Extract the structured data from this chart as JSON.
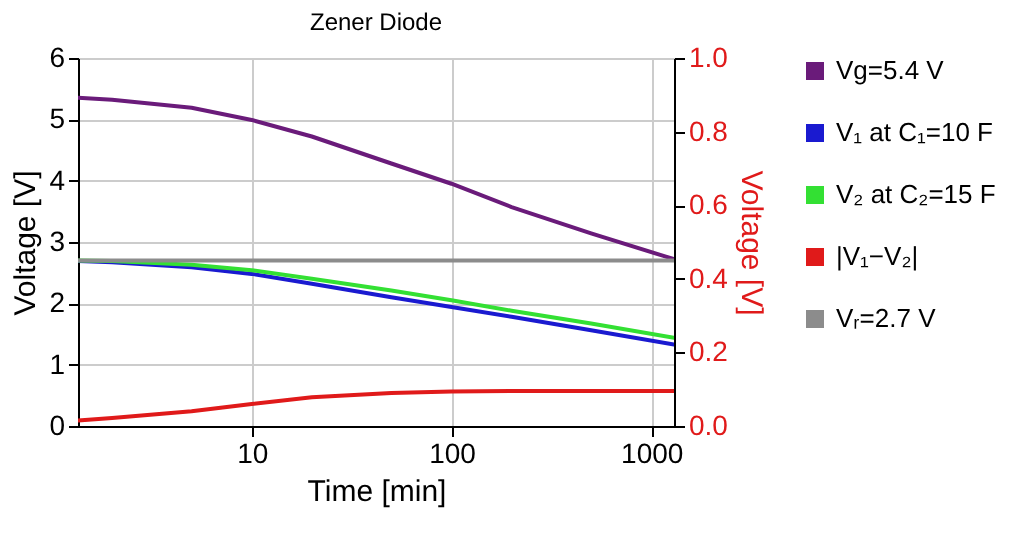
{
  "chart_data": {
    "type": "line",
    "title": "Zener Diode",
    "xlabel": "Time [min]",
    "ylabel": "Voltage [V]",
    "y2label": "Voltage [V]",
    "x": [
      1.35,
      2,
      5,
      10,
      20,
      50,
      100,
      200,
      500,
      1300
    ],
    "series": [
      {
        "name": "Vg=5.4 V",
        "color": "#6a1b7a",
        "values": [
          5.35,
          5.32,
          5.19,
          4.99,
          4.72,
          4.28,
          3.95,
          3.57,
          3.14,
          2.72
        ]
      },
      {
        "name": "V₁ at C₁=10 F",
        "color": "#1a1ad0",
        "values": [
          2.69,
          2.67,
          2.59,
          2.48,
          2.32,
          2.1,
          1.94,
          1.78,
          1.56,
          1.33
        ]
      },
      {
        "name": "V₂ at C₂=15 F",
        "color": "#33e033",
        "values": [
          2.7,
          2.69,
          2.63,
          2.54,
          2.4,
          2.21,
          2.05,
          1.88,
          1.67,
          1.44
        ]
      },
      {
        "name": "|V₁−V₂|",
        "color": "#e01a1a",
        "axis": "y2",
        "values": [
          0.015,
          0.022,
          0.04,
          0.06,
          0.078,
          0.09,
          0.094,
          0.095,
          0.095,
          0.095
        ]
      },
      {
        "name": "Vᵣ=2.7 V",
        "color": "#8c8c8c",
        "values": [
          2.7,
          2.7,
          2.7,
          2.7,
          2.7,
          2.7,
          2.7,
          2.7,
          2.7,
          2.7
        ]
      }
    ],
    "log": "x",
    "xlim": [
      1.35,
      1300
    ],
    "xticks": [
      10,
      100,
      1000
    ],
    "ylim": [
      0,
      6
    ],
    "yticks": [
      0,
      1,
      2,
      3,
      4,
      5,
      6
    ],
    "y2lim": [
      0,
      1.0
    ],
    "y2ticks": [
      {
        "value": 0,
        "label": "0.0"
      },
      {
        "value": 0.2,
        "label": "0.2"
      },
      {
        "value": 0.4,
        "label": "0.4"
      },
      {
        "value": 0.6,
        "label": "0.6"
      },
      {
        "value": 0.8,
        "label": "0.8"
      },
      {
        "value": 1.0,
        "label": "1.0"
      }
    ],
    "grid": true,
    "legend": "right",
    "marker": "none",
    "line_style": "solid"
  }
}
